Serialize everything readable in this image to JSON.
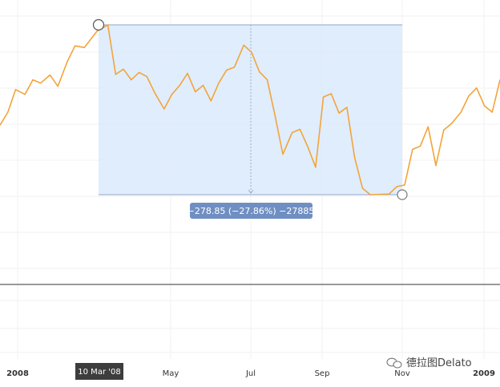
{
  "chart_data": {
    "type": "line",
    "x_ticks": [
      "2008",
      "May",
      "Jul",
      "Sep",
      "Nov",
      "2009"
    ],
    "crosshair_date_label": "10 Mar '08",
    "measurement": {
      "start_date": "10 Mar '08",
      "end_date": "Nov '08",
      "label": "−278.85 (−27.86%) −27885"
    },
    "series": [
      {
        "color": "#f2a43a",
        "points": [
          [
            "2008-01-01",
            0.765
          ],
          [
            "2008-01-06",
            0.805
          ],
          [
            "2008-01-11",
            0.875
          ],
          [
            "2008-01-17",
            0.86
          ],
          [
            "2008-01-22",
            0.905
          ],
          [
            "2008-01-27",
            0.895
          ],
          [
            "2008-02-02",
            0.92
          ],
          [
            "2008-02-07",
            0.885
          ],
          [
            "2008-02-13",
            0.96
          ],
          [
            "2008-02-18",
            1.01
          ],
          [
            "2008-02-24",
            1.005
          ],
          [
            "2008-03-03",
            1.055
          ],
          [
            "2008-03-10",
            1.075
          ],
          [
            "2008-03-15",
            0.922
          ],
          [
            "2008-03-20",
            0.938
          ],
          [
            "2008-03-25",
            0.905
          ],
          [
            "2008-03-30",
            0.928
          ],
          [
            "2008-04-04",
            0.915
          ],
          [
            "2008-04-09",
            0.865
          ],
          [
            "2008-04-15",
            0.815
          ],
          [
            "2008-04-20",
            0.86
          ],
          [
            "2008-04-25",
            0.888
          ],
          [
            "2008-04-30",
            0.925
          ],
          [
            "2008-05-05",
            0.868
          ],
          [
            "2008-05-10",
            0.888
          ],
          [
            "2008-05-15",
            0.84
          ],
          [
            "2008-05-20",
            0.895
          ],
          [
            "2008-05-25",
            0.935
          ],
          [
            "2008-05-30",
            0.944
          ],
          [
            "2008-06-05",
            1.012
          ],
          [
            "2008-06-10",
            0.99
          ],
          [
            "2008-06-15",
            0.93
          ],
          [
            "2008-06-20",
            0.905
          ],
          [
            "2008-06-25",
            0.795
          ],
          [
            "2008-06-30",
            0.675
          ],
          [
            "2008-07-06",
            0.742
          ],
          [
            "2008-07-11",
            0.752
          ],
          [
            "2008-07-16",
            0.698
          ],
          [
            "2008-07-21",
            0.635
          ],
          [
            "2008-07-26",
            0.852
          ],
          [
            "2008-07-31",
            0.862
          ],
          [
            "2008-08-05",
            0.802
          ],
          [
            "2008-08-10",
            0.82
          ],
          [
            "2008-08-15",
            0.665
          ],
          [
            "2008-08-20",
            0.57
          ],
          [
            "2008-08-25",
            0.55
          ],
          [
            "2008-09-06",
            0.552
          ],
          [
            "2008-09-11",
            0.575
          ],
          [
            "2008-09-16",
            0.58
          ],
          [
            "2008-09-21",
            0.69
          ],
          [
            "2008-09-26",
            0.7
          ],
          [
            "2008-10-01",
            0.76
          ],
          [
            "2008-10-06",
            0.64
          ],
          [
            "2008-10-11",
            0.75
          ],
          [
            "2008-10-16",
            0.77
          ],
          [
            "2008-10-22",
            0.805
          ],
          [
            "2008-10-27",
            0.855
          ],
          [
            "2008-11-01",
            0.88
          ],
          [
            "2008-11-06",
            0.825
          ],
          [
            "2008-11-11",
            0.805
          ],
          [
            "2008-11-16",
            0.905
          ]
        ]
      }
    ]
  },
  "watermark": {
    "text": "德拉图Delato"
  }
}
